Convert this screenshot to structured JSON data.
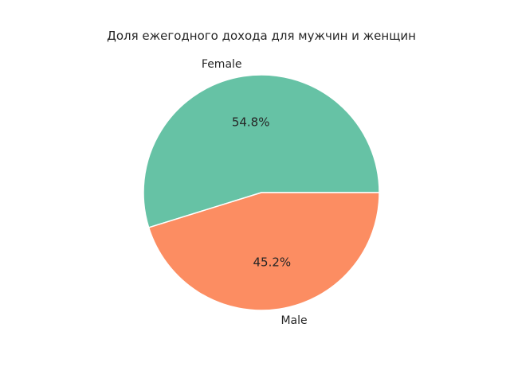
{
  "chart_data": {
    "type": "pie",
    "title": "Доля ежегодного дохода для мужчин и женщин",
    "labels": [
      "Female",
      "Male"
    ],
    "values": [
      54.8,
      45.2
    ],
    "value_labels": [
      "54.8%",
      "45.2%"
    ],
    "colors": [
      "#66c2a5",
      "#fc8d62"
    ],
    "start_angle_deg": 0,
    "direction": "counterclockwise",
    "legend": "none"
  }
}
